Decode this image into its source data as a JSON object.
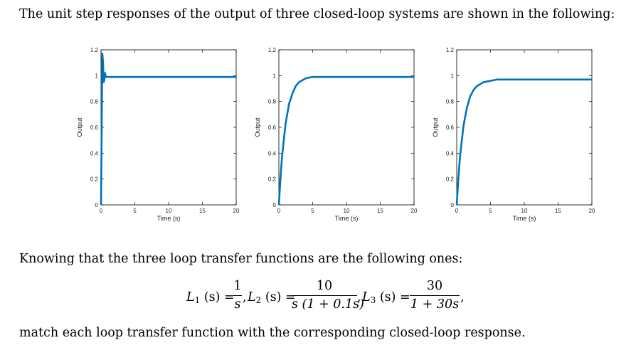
{
  "text": {
    "intro": "The unit step responses of the output of three closed-loop systems are shown in the following:",
    "knowing": "Knowing that the three loop transfer functions are the following ones:",
    "match": "match each loop transfer function with the corresponding closed-loop response."
  },
  "formula": {
    "L1": {
      "lhs": "L",
      "sub": "1",
      "arg": "(s) =",
      "num": "1",
      "den": "s",
      "sep": ","
    },
    "L2": {
      "lhs": "L",
      "sub": "2",
      "arg": "(s) =",
      "num": "10",
      "den": "s (1 + 0.1s)",
      "sep": ","
    },
    "L3": {
      "lhs": "L",
      "sub": "3",
      "arg": "(s) =",
      "num": "30",
      "den": "1 + 30s",
      "sep": ","
    }
  },
  "colors": {
    "line": "#0072BD",
    "axis": "#000000"
  },
  "chart_data": [
    {
      "type": "line",
      "xlabel": "Time (s)",
      "ylabel": "Output",
      "xlim": [
        0,
        20
      ],
      "ylim": [
        0,
        1.2
      ],
      "xticks": [
        0,
        5,
        10,
        15,
        20
      ],
      "xtick_labels": [
        "0",
        "5",
        "10",
        "15",
        "20"
      ],
      "yticks": [
        0,
        0.2,
        0.4,
        0.6,
        0.8,
        1,
        1.2
      ],
      "ytick_labels": [
        "0",
        "0.2",
        "0.4",
        "0.6",
        "0.8",
        "1",
        "1.2"
      ],
      "series": [
        {
          "x": [
            0,
            0.1,
            0.2,
            0.3,
            0.4,
            0.5,
            0.6,
            0.7,
            0.8,
            1.0,
            1.5,
            3,
            20
          ],
          "y": [
            0,
            0.6,
            1.17,
            1.1,
            0.95,
            0.97,
            1.02,
            0.99,
            0.99,
            0.99,
            0.99,
            0.99,
            0.99
          ]
        }
      ]
    },
    {
      "type": "line",
      "xlabel": "Time (s)",
      "ylabel": "Output",
      "xlim": [
        0,
        20
      ],
      "ylim": [
        0,
        1.2
      ],
      "xticks": [
        0,
        5,
        10,
        15,
        20
      ],
      "xtick_labels": [
        "0",
        "5",
        "10",
        "15",
        "20"
      ],
      "yticks": [
        0,
        0.2,
        0.4,
        0.6,
        0.8,
        1,
        1.2
      ],
      "ytick_labels": [
        "0",
        "0.2",
        "0.4",
        "0.6",
        "0.8",
        "1",
        "1.2"
      ],
      "series": [
        {
          "x": [
            0,
            0.25,
            0.5,
            1,
            1.5,
            2,
            2.5,
            3,
            4,
            5,
            6,
            8,
            20
          ],
          "y": [
            0,
            0.22,
            0.39,
            0.63,
            0.78,
            0.86,
            0.92,
            0.95,
            0.98,
            0.99,
            0.99,
            0.99,
            0.99
          ]
        }
      ]
    },
    {
      "type": "line",
      "xlabel": "Time (s)",
      "ylabel": "Output",
      "xlim": [
        0,
        20
      ],
      "ylim": [
        0,
        1.2
      ],
      "xticks": [
        0,
        5,
        10,
        15,
        20
      ],
      "xtick_labels": [
        "0",
        "5",
        "10",
        "15",
        "20"
      ],
      "yticks": [
        0,
        0.2,
        0.4,
        0.6,
        0.8,
        1,
        1.2
      ],
      "ytick_labels": [
        "0",
        "0.2",
        "0.4",
        "0.6",
        "0.8",
        "1",
        "1.2"
      ],
      "series": [
        {
          "x": [
            0,
            0.25,
            0.5,
            1,
            1.5,
            2,
            2.5,
            3,
            4,
            5,
            6,
            8,
            20
          ],
          "y": [
            0,
            0.21,
            0.38,
            0.61,
            0.75,
            0.84,
            0.89,
            0.92,
            0.95,
            0.96,
            0.97,
            0.97,
            0.97
          ]
        }
      ]
    }
  ]
}
